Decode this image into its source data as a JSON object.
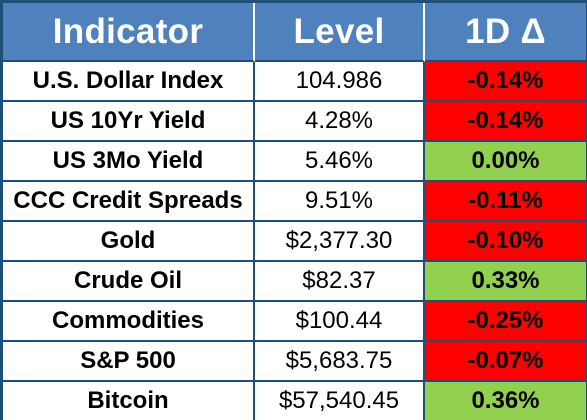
{
  "table": {
    "headers": [
      "Indicator",
      "Level",
      "1D Δ"
    ],
    "rows": [
      {
        "name": "U.S. Dollar Index",
        "level": "104.986",
        "change": "-0.14%",
        "direction": "negative"
      },
      {
        "name": "US 10Yr Yield",
        "level": "4.28%",
        "change": "-0.14%",
        "direction": "negative"
      },
      {
        "name": "US 3Mo Yield",
        "level": "5.46%",
        "change": "0.00%",
        "direction": "positive"
      },
      {
        "name": "CCC Credit Spreads",
        "level": "9.51%",
        "change": "-0.11%",
        "direction": "negative"
      },
      {
        "name": "Gold",
        "level": "$2,377.30",
        "change": "-0.10%",
        "direction": "negative"
      },
      {
        "name": "Crude Oil",
        "level": "$82.37",
        "change": "0.33%",
        "direction": "positive"
      },
      {
        "name": "Commodities",
        "level": "$100.44",
        "change": "-0.25%",
        "direction": "negative"
      },
      {
        "name": "S&P 500",
        "level": "$5,683.75",
        "change": "-0.07%",
        "direction": "negative"
      },
      {
        "name": "Bitcoin",
        "level": "$57,540.45",
        "change": "0.36%",
        "direction": "positive"
      }
    ]
  },
  "colors": {
    "header_bg": "#4f81bd",
    "border": "#1f4e79",
    "negative": "#ff0000",
    "positive": "#92d050"
  }
}
